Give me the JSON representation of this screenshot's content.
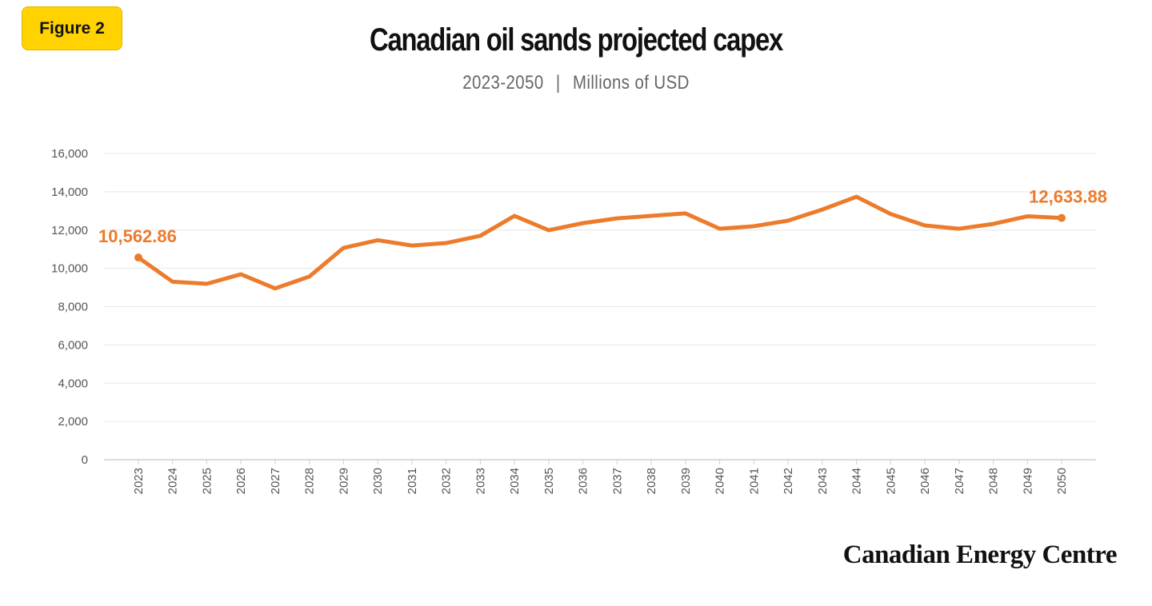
{
  "badge": "Figure 2",
  "title": "Canadian oil sands projected capex",
  "subtitle": {
    "range": "2023-2050",
    "separator": "|",
    "unit": "Millions of USD"
  },
  "brand": "Canadian Energy Centre",
  "colors": {
    "line": "#ec7b2c",
    "badge": "#ffd200",
    "grid": "#e6e6e6"
  },
  "chart_data": {
    "type": "line",
    "title": "Canadian oil sands projected capex",
    "subtitle": "2023-2050 | Millions of USD",
    "xlabel": "",
    "ylabel": "",
    "ylim": [
      0,
      16000
    ],
    "yticks": [
      0,
      2000,
      4000,
      6000,
      8000,
      10000,
      12000,
      14000,
      16000
    ],
    "ytick_labels": [
      "0",
      "2,000",
      "4,000",
      "6,000",
      "8,000",
      "10,000",
      "12,000",
      "14,000",
      "16,000"
    ],
    "grid": true,
    "legend": "none",
    "categories": [
      "2023",
      "2024",
      "2025",
      "2026",
      "2027",
      "2028",
      "2029",
      "2030",
      "2031",
      "2032",
      "2033",
      "2034",
      "2035",
      "2036",
      "2037",
      "2038",
      "2039",
      "2040",
      "2041",
      "2042",
      "2043",
      "2044",
      "2045",
      "2046",
      "2047",
      "2048",
      "2049",
      "2050"
    ],
    "values": [
      10562.86,
      9300,
      9190,
      9690,
      8950,
      9570,
      11070,
      11470,
      11190,
      11320,
      11700,
      12740,
      11990,
      12360,
      12610,
      12740,
      12870,
      12070,
      12200,
      12490,
      13070,
      13740,
      12840,
      12240,
      12070,
      12320,
      12720,
      12633.88
    ],
    "annotations": [
      {
        "category": "2023",
        "text": "10,562.86"
      },
      {
        "category": "2050",
        "text": "12,633.88"
      }
    ]
  }
}
